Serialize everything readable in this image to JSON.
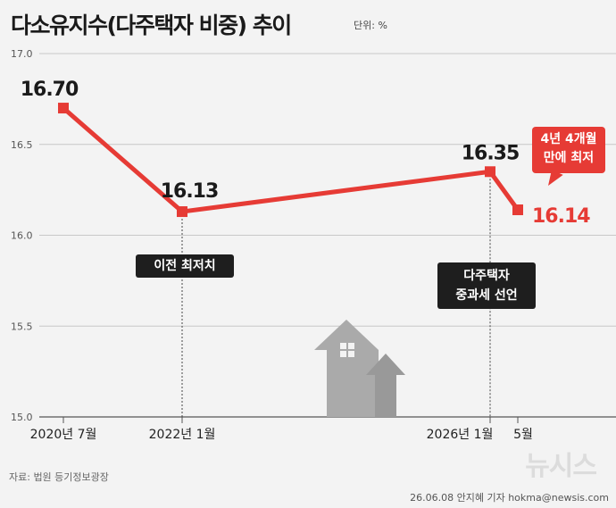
{
  "header": {
    "title": "다소유지수(다주택자 비중) 추이",
    "unit": "단위: %"
  },
  "annotations": {
    "callout_line1": "4년 4개월",
    "callout_line2": "만에 최저",
    "note1": "이전 최저치",
    "note2_line1": "다주택자",
    "note2_line2": "중과세 선언"
  },
  "footer": {
    "source": "자료: 법원 등기정보광장",
    "credit": "26.06.08 안지혜 기자 hokma@newsis.com",
    "watermark": "뉴시스"
  },
  "colors": {
    "line": "#e63b35",
    "accent_label": "#e63b35",
    "label": "#1a1a1a",
    "grid": "#c8c8c8",
    "house": "#b4b4b4"
  },
  "chart_data": {
    "type": "line",
    "ylim": [
      15.0,
      17.0
    ],
    "yticks": [
      "15.0",
      "15.5",
      "16.0",
      "16.5",
      "17.0"
    ],
    "xticks": [
      "2020년 7월",
      "2022년 1월",
      "2026년 1월",
      "5월"
    ],
    "points": [
      {
        "x": "2020년 7월",
        "y": 16.7,
        "label": "16.70"
      },
      {
        "x": "2022년 1월",
        "y": 16.13,
        "label": "16.13"
      },
      {
        "x": "2026년 1월",
        "y": 16.35,
        "label": "16.35"
      },
      {
        "x": "2026년 5월",
        "y": 16.14,
        "label": "16.14"
      }
    ]
  }
}
